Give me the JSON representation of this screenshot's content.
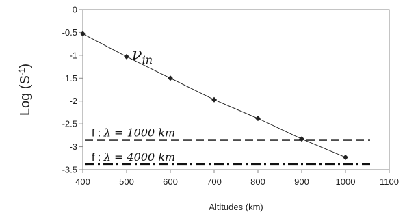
{
  "chart_data": {
    "type": "line",
    "title": "",
    "xlabel": "Altitudes (km)",
    "ylabel": "Log (S-1)",
    "ylabel_parts": {
      "main": "Log (S",
      "sup": "-1",
      "close": ")"
    },
    "xlim": [
      400,
      1100
    ],
    "ylim": [
      -3.5,
      0
    ],
    "x_ticks": [
      400,
      500,
      600,
      700,
      800,
      900,
      1000,
      1100
    ],
    "y_ticks": [
      0,
      -0.5,
      -1,
      -1.5,
      -2,
      -2.5,
      -3,
      -3.5
    ],
    "x_tick_labels": [
      "400",
      "500",
      "600",
      "700",
      "800",
      "900",
      "1000",
      "1100"
    ],
    "y_tick_labels": [
      "0",
      "-0.5",
      "-1",
      "-1.5",
      "-2",
      "-2.5",
      "-3",
      "-3.5"
    ],
    "grid": false,
    "series": [
      {
        "name": "ν_in",
        "label_parts": {
          "main": "ν",
          "sub": "in"
        },
        "x": [
          400,
          500,
          600,
          700,
          800,
          900,
          1000
        ],
        "y": [
          -0.53,
          -1.03,
          -1.5,
          -1.97,
          -2.38,
          -2.83,
          -3.23
        ],
        "color": "#222222",
        "marker": "diamond"
      }
    ],
    "hlines": [
      {
        "name": "f : λ = 1000 km",
        "label_parts": {
          "a": "f : ",
          "b": "λ = 1000 ",
          "c": "km"
        },
        "y": -2.85,
        "style": "dashed",
        "color": "#111111"
      },
      {
        "name": "f : λ = 4000 km",
        "label_parts": {
          "a": "f : ",
          "b": "λ = 4000 ",
          "c": "km"
        },
        "y": -3.38,
        "style": "dashdot",
        "color": "#111111"
      }
    ]
  }
}
